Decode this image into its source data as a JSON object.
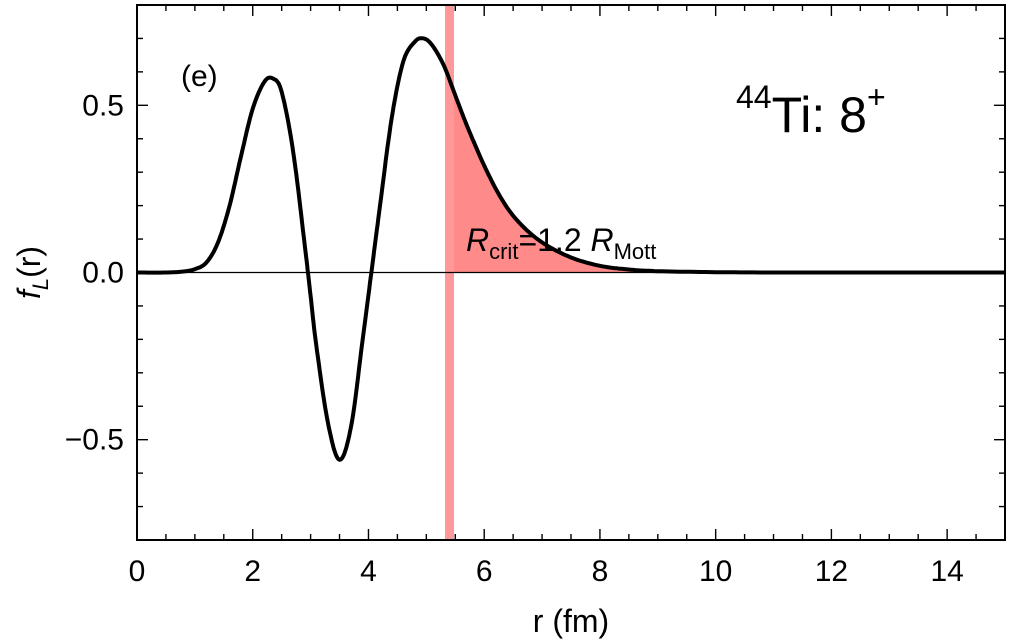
{
  "chart_data": {
    "type": "line",
    "xlabel": "r (fm)",
    "ylabel": {
      "base": "f",
      "sub": "L",
      "rest": "(r)"
    },
    "xlim": [
      0,
      15
    ],
    "ylim": [
      -0.8,
      0.8
    ],
    "xticks": [
      0,
      2,
      4,
      6,
      8,
      10,
      12,
      14
    ],
    "xtick_labels": [
      "0",
      "2",
      "4",
      "6",
      "8",
      "10",
      "12",
      "14"
    ],
    "yticks": [
      -0.5,
      0.0,
      0.5
    ],
    "ytick_labels": [
      "−0.5",
      "0.0",
      "0.5"
    ],
    "grid": false,
    "panel_label": "(e)",
    "nucleus_label": {
      "mass": "44",
      "element": "Ti: 8",
      "parity": "+"
    },
    "annotation": {
      "r": "R",
      "r_sub": "crit",
      "middle": "=1.2 ",
      "m": "R",
      "m_sub": "Mott"
    },
    "critical_radius": 5.4,
    "shade_color": "#ff8a8a",
    "band_color": "#ff9999",
    "line_color": "#000000",
    "series": [
      {
        "x": [
          0,
          0.5,
          0.8,
          1.0,
          1.2,
          1.4,
          1.6,
          1.8,
          2.0,
          2.2,
          2.35,
          2.5,
          2.7,
          2.9,
          3.0,
          3.1,
          3.3,
          3.5,
          3.7,
          3.9,
          4.05,
          4.2,
          4.4,
          4.6,
          4.8,
          4.95,
          5.1,
          5.3,
          5.5,
          5.7,
          6.0,
          6.3,
          6.6,
          7.0,
          7.5,
          8.0,
          8.5,
          9.0,
          10.0,
          11.0,
          12.0,
          13.0,
          14.0,
          15.0
        ],
        "y": [
          0.0,
          0.0,
          0.003,
          0.01,
          0.03,
          0.09,
          0.2,
          0.35,
          0.49,
          0.57,
          0.58,
          0.54,
          0.36,
          0.08,
          -0.07,
          -0.22,
          -0.45,
          -0.56,
          -0.46,
          -0.2,
          0.0,
          0.2,
          0.46,
          0.63,
          0.69,
          0.7,
          0.68,
          0.62,
          0.53,
          0.44,
          0.32,
          0.22,
          0.15,
          0.09,
          0.045,
          0.02,
          0.009,
          0.004,
          0.001,
          0.0,
          0.0,
          0.0,
          0.0,
          0.0
        ]
      }
    ]
  }
}
